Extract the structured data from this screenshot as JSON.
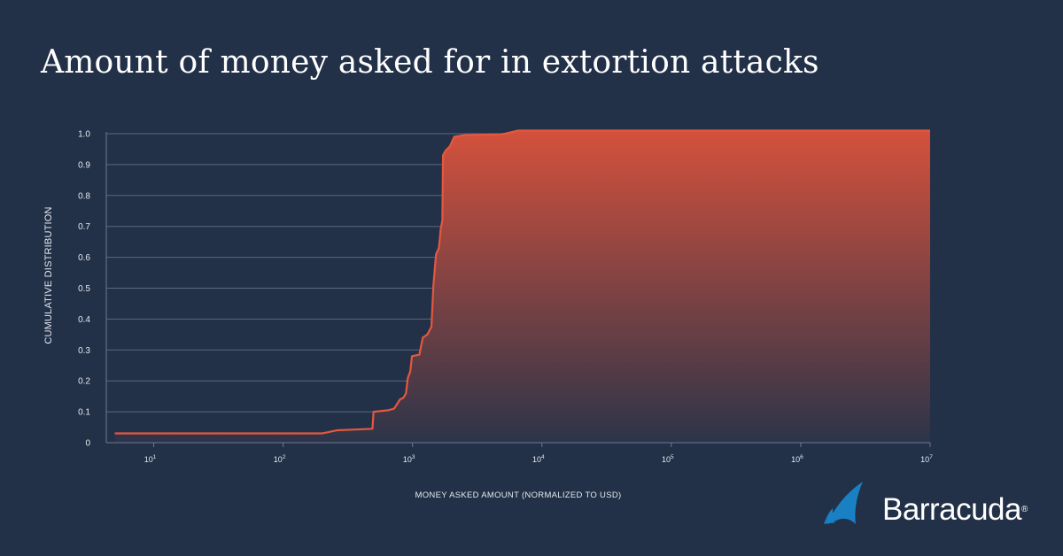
{
  "chart_data": {
    "type": "area",
    "title": "Amount of money asked for in extortion attacks",
    "xlabel": "MONEY ASKED AMOUNT (NORMALIZED TO USD)",
    "ylabel": "CUMULATIVE DISTRIBUTION",
    "x_scale": "log",
    "xlim": [
      4.3,
      10000000
    ],
    "ylim": [
      0,
      1.0
    ],
    "x_ticks": [
      {
        "value": 10,
        "base": "10",
        "exp": "1"
      },
      {
        "value": 100,
        "base": "10",
        "exp": "2"
      },
      {
        "value": 1000,
        "base": "10",
        "exp": "3"
      },
      {
        "value": 10000,
        "base": "10",
        "exp": "4"
      },
      {
        "value": 100000,
        "base": "10",
        "exp": "5"
      },
      {
        "value": 1000000,
        "base": "10",
        "exp": "6"
      },
      {
        "value": 10000000,
        "base": "10",
        "exp": "7"
      }
    ],
    "y_ticks": [
      {
        "value": 0,
        "label": "0"
      },
      {
        "value": 0.1,
        "label": "0.1"
      },
      {
        "value": 0.2,
        "label": "0.2"
      },
      {
        "value": 0.3,
        "label": "0.3"
      },
      {
        "value": 0.4,
        "label": "0.4"
      },
      {
        "value": 0.5,
        "label": "0.5"
      },
      {
        "value": 0.6,
        "label": "0.6"
      },
      {
        "value": 0.7,
        "label": "0.7"
      },
      {
        "value": 0.8,
        "label": "0.8"
      },
      {
        "value": 0.9,
        "label": "0.9"
      },
      {
        "value": 1.0,
        "label": "1.0"
      }
    ],
    "grid": "horizontal",
    "line_color": "#e4583e",
    "fill_color_top": "#d4513c",
    "fill_color_bottom": "#2c3449",
    "series": [
      {
        "points": [
          [
            5,
            0.03
          ],
          [
            200,
            0.03
          ],
          [
            260,
            0.04
          ],
          [
            490,
            0.045
          ],
          [
            500,
            0.1
          ],
          [
            650,
            0.105
          ],
          [
            720,
            0.11
          ],
          [
            760,
            0.125
          ],
          [
            800,
            0.14
          ],
          [
            850,
            0.145
          ],
          [
            890,
            0.16
          ],
          [
            920,
            0.21
          ],
          [
            960,
            0.23
          ],
          [
            990,
            0.28
          ],
          [
            1130,
            0.285
          ],
          [
            1200,
            0.34
          ],
          [
            1300,
            0.35
          ],
          [
            1400,
            0.375
          ],
          [
            1450,
            0.51
          ],
          [
            1520,
            0.61
          ],
          [
            1600,
            0.63
          ],
          [
            1650,
            0.69
          ],
          [
            1700,
            0.72
          ],
          [
            1720,
            0.93
          ],
          [
            1800,
            0.945
          ],
          [
            1950,
            0.96
          ],
          [
            2100,
            0.99
          ],
          [
            2500,
            0.995
          ],
          [
            3500,
            0.997
          ],
          [
            4800,
            0.998
          ],
          [
            5200,
            1.0
          ],
          [
            6500,
            1.01
          ],
          [
            10000000,
            1.01
          ]
        ]
      }
    ]
  },
  "brand": {
    "name": "Barracuda",
    "mark": "®",
    "logo_icon": "barracuda-fin-icon",
    "logo_color": "#1a80c4"
  }
}
